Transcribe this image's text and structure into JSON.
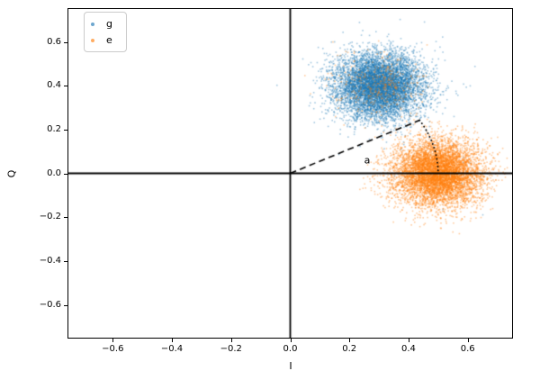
{
  "chart_data": {
    "type": "scatter",
    "title": "",
    "xlabel": "I",
    "ylabel": "Q",
    "xlim": [
      -0.75,
      0.75
    ],
    "ylim": [
      -0.75,
      0.75
    ],
    "grid": false,
    "x_ticks": [
      -0.6,
      -0.4,
      -0.2,
      0.0,
      0.2,
      0.4,
      0.6
    ],
    "x_tick_labels": [
      "−0.6",
      "−0.4",
      "−0.2",
      "0.0",
      "0.2",
      "0.4",
      "0.6"
    ],
    "y_ticks": [
      -0.6,
      -0.4,
      -0.2,
      0.0,
      0.2,
      0.4,
      0.6
    ],
    "y_tick_labels": [
      "−0.6",
      "−0.4",
      "−0.2",
      "0.0",
      "0.2",
      "0.4",
      "0.6"
    ],
    "legend": {
      "position": "upper left",
      "entries": [
        {
          "label": "g",
          "color": "#1f77b4"
        },
        {
          "label": "e",
          "color": "#ff7f0e"
        }
      ]
    },
    "series": [
      {
        "name": "g",
        "color": "#1f77b4",
        "n": 7000,
        "marker_size_px": 1.6,
        "alpha": 0.4,
        "clusters": [
          {
            "center": [
              0.3,
              0.4
            ],
            "std": 0.075,
            "weight": 0.996
          },
          {
            "center": [
              0.5,
              0.0
            ],
            "std": 0.075,
            "weight": 0.004
          }
        ]
      },
      {
        "name": "e",
        "color": "#ff7f0e",
        "n": 7000,
        "marker_size_px": 1.6,
        "alpha": 0.4,
        "clusters": [
          {
            "center": [
              0.5,
              0.0
            ],
            "std": 0.075,
            "weight": 0.95
          },
          {
            "center": [
              0.3,
              0.4
            ],
            "std": 0.075,
            "weight": 0.05
          }
        ]
      }
    ],
    "annotations": {
      "zero_lines": {
        "x": 0.0,
        "y": 0.0,
        "color": "#000000"
      },
      "dashed_line": {
        "from": [
          0.0,
          0.0
        ],
        "to": [
          0.437,
          0.242
        ],
        "style": "dashed",
        "color": "#000000"
      },
      "dotted_arc": {
        "center": [
          0.0,
          0.0
        ],
        "radius": 0.5,
        "start_angle_deg": 29,
        "end_angle_deg": 0,
        "style": "dotted",
        "color": "#000000"
      },
      "angle_label": {
        "text": "a",
        "position": [
          0.26,
          0.06
        ],
        "color": "#000000"
      }
    }
  }
}
